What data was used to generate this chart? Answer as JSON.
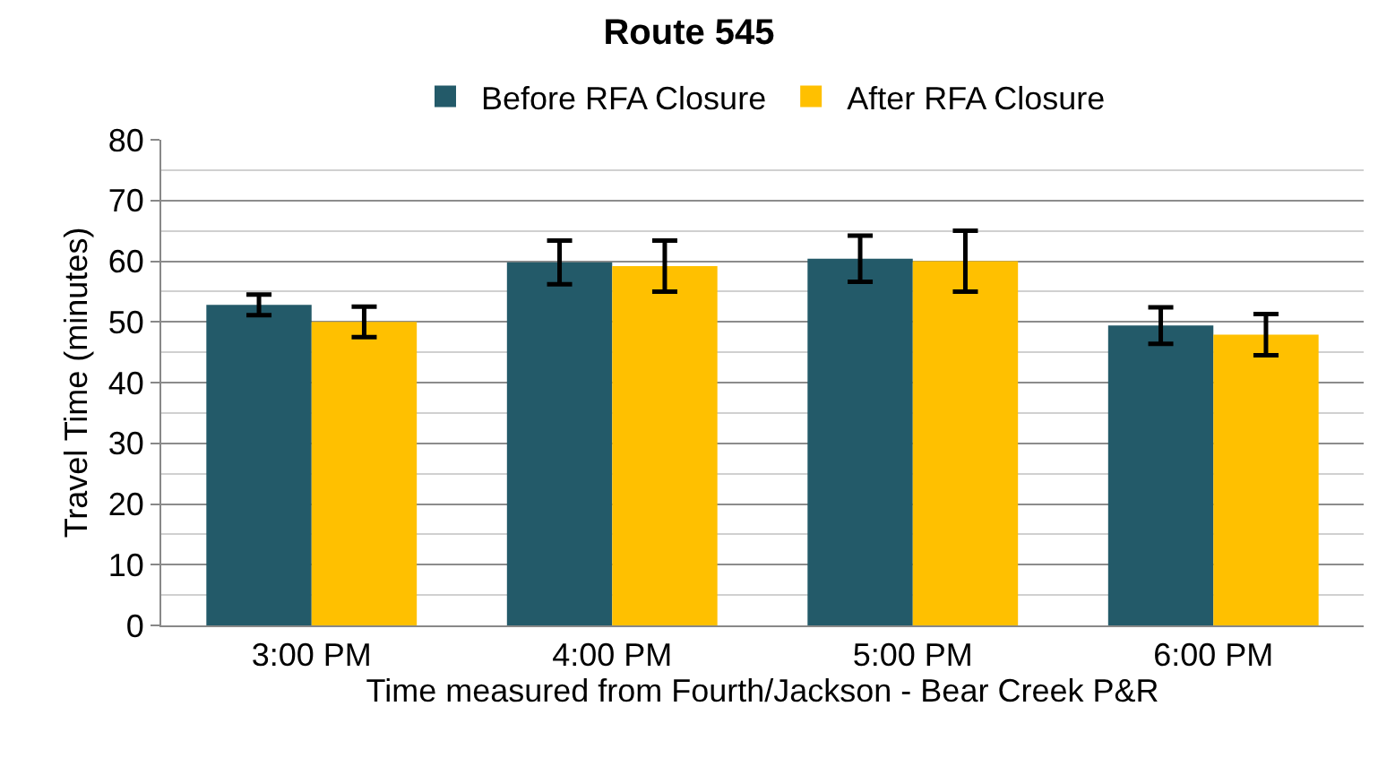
{
  "chart_data": {
    "type": "bar",
    "title": "Route 545",
    "xlabel": "Time measured from Fourth/Jackson - Bear Creek P&R",
    "ylabel": "Travel Time (minutes)",
    "categories": [
      "3:00 PM",
      "4:00 PM",
      "5:00 PM",
      "6:00 PM"
    ],
    "series": [
      {
        "name": "Before RFA Closure",
        "color": "#235a69",
        "values": [
          52.8,
          59.8,
          60.4,
          49.4
        ],
        "errors": [
          1.7,
          3.6,
          3.8,
          3
        ]
      },
      {
        "name": "After RFA Closure",
        "color": "#ffc000",
        "values": [
          50,
          59.2,
          60,
          47.9
        ],
        "errors": [
          2.5,
          4.2,
          5,
          3.4
        ]
      }
    ],
    "ylim": [
      0,
      80
    ],
    "yticks": [
      0,
      10,
      20,
      30,
      40,
      50,
      60,
      70,
      80
    ],
    "grid": "y",
    "legend": "top"
  }
}
